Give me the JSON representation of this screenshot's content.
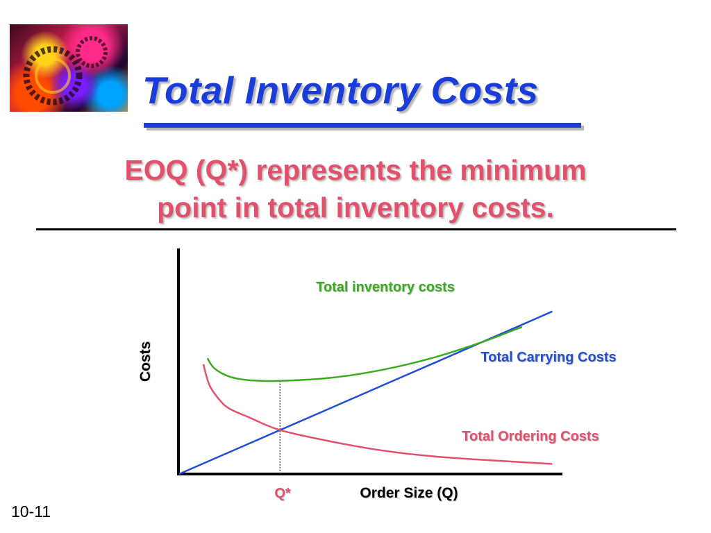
{
  "slide": {
    "title": "Total Inventory Costs",
    "subtitle_line1": "EOQ (Q*) represents the minimum",
    "subtitle_line2": "point in total inventory costs.",
    "page_number": "10-11"
  },
  "colors": {
    "title": "#1a3cd9",
    "subtitle": "#e3506b",
    "total_inventory": "#3aab1e",
    "carrying": "#1f4fd8",
    "ordering": "#e3506b"
  },
  "chart_data": {
    "type": "line",
    "title": "",
    "xlabel": "Order Size (Q)",
    "ylabel": "Costs",
    "x_marker_label": "Q*",
    "q_star": 1,
    "xlim": [
      0,
      3.8
    ],
    "ylim": [
      0,
      3.8
    ],
    "grid": false,
    "series": [
      {
        "name": "Total Carrying Costs",
        "color": "#1f4fd8",
        "x": [
          0,
          0.5,
          1,
          1.5,
          2,
          2.5,
          3,
          3.5,
          3.7
        ],
        "y": [
          0,
          0.37,
          0.74,
          1.11,
          1.48,
          1.85,
          2.22,
          2.59,
          2.74
        ]
      },
      {
        "name": "Total Ordering Costs",
        "color": "#e3506b",
        "x": [
          0.24,
          0.3,
          0.4,
          0.5,
          0.7,
          1,
          1.5,
          2,
          2.5,
          3,
          3.7
        ],
        "y": [
          1.85,
          1.5,
          1.25,
          1.1,
          0.95,
          0.74,
          0.55,
          0.4,
          0.3,
          0.24,
          0.17
        ]
      },
      {
        "name": "Total inventory costs",
        "color": "#3aab1e",
        "x": [
          0.28,
          0.35,
          0.5,
          0.7,
          1,
          1.5,
          2,
          2.5,
          3,
          3.4
        ],
        "y": [
          1.95,
          1.78,
          1.64,
          1.58,
          1.57,
          1.62,
          1.75,
          1.95,
          2.22,
          2.48
        ]
      }
    ]
  }
}
